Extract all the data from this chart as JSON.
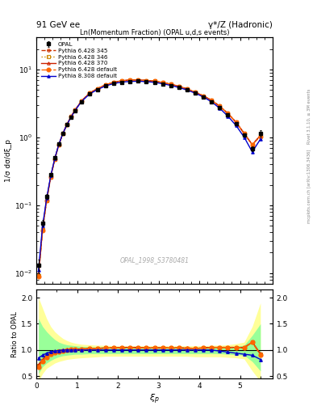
{
  "title_left": "91 GeV ee",
  "title_right": "γ*/Z (Hadronic)",
  "plot_title": "Ln(Momentum Fraction) (OPAL u,d,s events)",
  "xlabel": "ξ_p",
  "ylabel_main": "1/σ dσ/dξ_p",
  "ylabel_ratio": "Ratio to OPAL",
  "watermark": "OPAL_1998_S3780481",
  "right_label": "Rivet 3.1.10, ≥ 3M events",
  "right_label2": "mcplots.cern.ch [arXiv:1306.3436]",
  "xlim": [
    0.0,
    5.8
  ],
  "ylim_main": [
    0.007,
    30
  ],
  "ylim_ratio": [
    0.45,
    2.15
  ],
  "xi": [
    0.05,
    0.15,
    0.25,
    0.35,
    0.45,
    0.55,
    0.65,
    0.75,
    0.85,
    0.95,
    1.1,
    1.3,
    1.5,
    1.7,
    1.9,
    2.1,
    2.3,
    2.5,
    2.7,
    2.9,
    3.1,
    3.3,
    3.5,
    3.7,
    3.9,
    4.1,
    4.3,
    4.5,
    4.7,
    4.9,
    5.1,
    5.3,
    5.5
  ],
  "opal_y": [
    0.013,
    0.055,
    0.135,
    0.28,
    0.5,
    0.8,
    1.15,
    1.55,
    2.0,
    2.5,
    3.35,
    4.35,
    5.1,
    5.75,
    6.25,
    6.55,
    6.7,
    6.75,
    6.65,
    6.5,
    6.2,
    5.85,
    5.45,
    5.0,
    4.5,
    3.95,
    3.35,
    2.75,
    2.15,
    1.6,
    1.1,
    0.68,
    1.15
  ],
  "opal_yerr": [
    0.003,
    0.006,
    0.01,
    0.015,
    0.02,
    0.025,
    0.03,
    0.035,
    0.04,
    0.05,
    0.06,
    0.07,
    0.08,
    0.09,
    0.09,
    0.1,
    0.1,
    0.1,
    0.1,
    0.1,
    0.1,
    0.09,
    0.09,
    0.09,
    0.08,
    0.08,
    0.07,
    0.07,
    0.06,
    0.06,
    0.05,
    0.05,
    0.12
  ],
  "mc_y_scale": [
    1.0,
    1.0,
    1.0,
    1.0,
    1.0
  ],
  "ratio_py6_345": [
    0.7,
    0.8,
    0.88,
    0.93,
    0.96,
    0.98,
    0.99,
    1.0,
    1.01,
    1.01,
    1.02,
    1.03,
    1.03,
    1.04,
    1.04,
    1.04,
    1.05,
    1.04,
    1.04,
    1.04,
    1.04,
    1.04,
    1.04,
    1.03,
    1.03,
    1.04,
    1.05,
    1.05,
    1.05,
    1.05,
    1.04,
    1.15,
    0.92
  ],
  "ratio_py6_346": [
    0.7,
    0.8,
    0.88,
    0.93,
    0.96,
    0.98,
    0.99,
    1.0,
    1.01,
    1.01,
    1.02,
    1.03,
    1.03,
    1.04,
    1.04,
    1.04,
    1.05,
    1.04,
    1.04,
    1.04,
    1.04,
    1.04,
    1.04,
    1.03,
    1.03,
    1.04,
    1.05,
    1.05,
    1.05,
    1.05,
    1.04,
    1.15,
    0.92
  ],
  "ratio_py6_370": [
    0.72,
    0.82,
    0.9,
    0.94,
    0.97,
    0.99,
    1.0,
    1.01,
    1.02,
    1.02,
    1.02,
    1.03,
    1.03,
    1.04,
    1.04,
    1.05,
    1.05,
    1.05,
    1.04,
    1.04,
    1.04,
    1.04,
    1.04,
    1.04,
    1.03,
    1.04,
    1.05,
    1.05,
    1.05,
    1.05,
    1.05,
    1.15,
    0.93
  ],
  "ratio_py6_def": [
    0.68,
    0.78,
    0.86,
    0.92,
    0.95,
    0.97,
    0.99,
    1.0,
    1.01,
    1.01,
    1.02,
    1.03,
    1.03,
    1.04,
    1.04,
    1.04,
    1.04,
    1.04,
    1.04,
    1.04,
    1.04,
    1.04,
    1.04,
    1.03,
    1.03,
    1.04,
    1.05,
    1.05,
    1.05,
    1.05,
    1.04,
    1.15,
    0.9
  ],
  "ratio_py8_def": [
    0.85,
    0.9,
    0.94,
    0.97,
    0.98,
    0.99,
    1.0,
    1.0,
    1.0,
    1.0,
    1.0,
    1.0,
    1.0,
    1.0,
    1.0,
    1.0,
    1.0,
    1.0,
    1.0,
    1.0,
    1.0,
    1.0,
    1.0,
    1.0,
    1.0,
    1.0,
    1.0,
    0.98,
    0.96,
    0.94,
    0.92,
    0.9,
    0.82
  ],
  "band_yellow_lo": [
    0.4,
    0.55,
    0.65,
    0.7,
    0.75,
    0.78,
    0.8,
    0.82,
    0.83,
    0.84,
    0.85,
    0.86,
    0.87,
    0.88,
    0.88,
    0.88,
    0.88,
    0.88,
    0.88,
    0.88,
    0.88,
    0.88,
    0.88,
    0.88,
    0.87,
    0.87,
    0.87,
    0.87,
    0.86,
    0.85,
    0.83,
    0.6,
    0.4
  ],
  "band_yellow_hi": [
    2.0,
    1.8,
    1.6,
    1.45,
    1.35,
    1.28,
    1.22,
    1.18,
    1.15,
    1.13,
    1.11,
    1.1,
    1.09,
    1.09,
    1.08,
    1.08,
    1.08,
    1.08,
    1.08,
    1.08,
    1.08,
    1.08,
    1.08,
    1.08,
    1.08,
    1.08,
    1.09,
    1.09,
    1.1,
    1.12,
    1.15,
    1.45,
    1.9
  ],
  "band_green_lo": [
    0.55,
    0.68,
    0.75,
    0.8,
    0.84,
    0.87,
    0.89,
    0.9,
    0.91,
    0.92,
    0.92,
    0.93,
    0.93,
    0.93,
    0.93,
    0.93,
    0.93,
    0.93,
    0.93,
    0.93,
    0.93,
    0.93,
    0.93,
    0.93,
    0.93,
    0.93,
    0.93,
    0.93,
    0.92,
    0.91,
    0.9,
    0.78,
    0.6
  ],
  "band_green_hi": [
    1.6,
    1.45,
    1.35,
    1.27,
    1.2,
    1.15,
    1.12,
    1.1,
    1.09,
    1.08,
    1.07,
    1.06,
    1.06,
    1.06,
    1.05,
    1.05,
    1.05,
    1.05,
    1.05,
    1.05,
    1.05,
    1.05,
    1.05,
    1.05,
    1.05,
    1.05,
    1.06,
    1.06,
    1.06,
    1.07,
    1.09,
    1.28,
    1.5
  ]
}
